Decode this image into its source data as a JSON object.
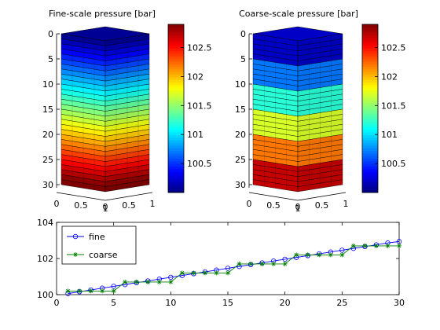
{
  "chart_data": [
    {
      "type": "heatmap",
      "title": "Fine-scale pressure [bar]",
      "layers": 30,
      "yticks": [
        0,
        5,
        10,
        15,
        20,
        25,
        30
      ],
      "xticks_left": [
        "0",
        "0.5",
        "1"
      ],
      "xticks_right": [
        "0",
        "0.5",
        "1"
      ],
      "colorbar": {
        "range": [
          100.0,
          102.9
        ],
        "ticks": [
          100.5,
          101,
          101.5,
          102,
          102.5
        ]
      },
      "values": [
        100.06,
        100.16,
        100.26,
        100.36,
        100.46,
        100.56,
        100.66,
        100.76,
        100.86,
        100.96,
        101.06,
        101.16,
        101.26,
        101.36,
        101.46,
        101.56,
        101.66,
        101.76,
        101.86,
        101.96,
        102.06,
        102.16,
        102.26,
        102.36,
        102.46,
        102.56,
        102.66,
        102.76,
        102.86,
        102.94
      ]
    },
    {
      "type": "heatmap",
      "title": "Coarse-scale pressure [bar]",
      "layers": 30,
      "yticks": [
        0,
        5,
        10,
        15,
        20,
        25,
        30
      ],
      "xticks_left": [
        "0",
        "0.5",
        "1"
      ],
      "xticks_right": [
        "0",
        "0.5",
        "1"
      ],
      "colorbar": {
        "range": [
          100.0,
          102.9
        ],
        "ticks": [
          100.5,
          101,
          101.5,
          102,
          102.5
        ]
      },
      "block_values": [
        100.2,
        100.7,
        101.2,
        101.7,
        102.2,
        102.7
      ],
      "block_size": 5
    },
    {
      "type": "line",
      "xlim": [
        0,
        30
      ],
      "ylim": [
        100,
        104
      ],
      "xticks": [
        0,
        5,
        10,
        15,
        20,
        25,
        30
      ],
      "yticks": [
        100,
        102,
        104
      ],
      "legend": "top-left",
      "grid": false,
      "x": [
        1,
        2,
        3,
        4,
        5,
        6,
        7,
        8,
        9,
        10,
        11,
        12,
        13,
        14,
        15,
        16,
        17,
        18,
        19,
        20,
        21,
        22,
        23,
        24,
        25,
        26,
        27,
        28,
        29,
        30
      ],
      "series": [
        {
          "name": "fine",
          "color": "#0000ff",
          "marker": "circle",
          "values": [
            100.06,
            100.16,
            100.26,
            100.36,
            100.46,
            100.56,
            100.66,
            100.76,
            100.86,
            100.96,
            101.06,
            101.16,
            101.26,
            101.36,
            101.46,
            101.56,
            101.66,
            101.76,
            101.86,
            101.96,
            102.06,
            102.16,
            102.26,
            102.36,
            102.46,
            102.56,
            102.66,
            102.76,
            102.86,
            102.94
          ]
        },
        {
          "name": "coarse",
          "color": "#008000",
          "marker": "star",
          "values": [
            100.2,
            100.2,
            100.2,
            100.2,
            100.2,
            100.7,
            100.7,
            100.7,
            100.7,
            100.7,
            101.2,
            101.2,
            101.2,
            101.2,
            101.2,
            101.7,
            101.7,
            101.7,
            101.7,
            101.7,
            102.2,
            102.2,
            102.2,
            102.2,
            102.2,
            102.7,
            102.7,
            102.7,
            102.7,
            102.7
          ]
        }
      ]
    }
  ]
}
